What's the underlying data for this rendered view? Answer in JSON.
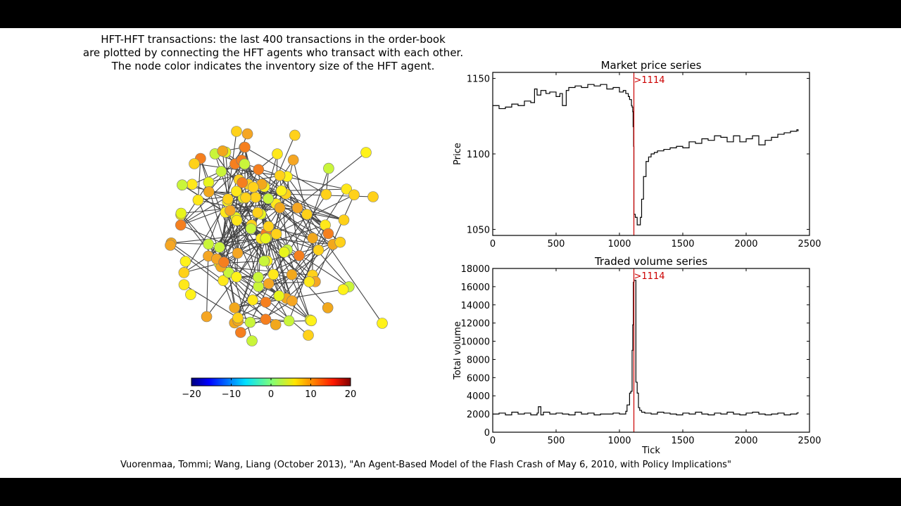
{
  "caption": {
    "line1": "HFT-HFT transactions: the last 400 transactions in the order-book",
    "line2": "are plotted by connecting the HFT agents who transact with each other.",
    "line3": "The node color indicates the inventory size of the HFT agent."
  },
  "citation": "Vuorenmaa, Tommi; Wang, Liang (October 2013), \"An Agent-Based Model of the Flash Crash of May 6, 2010, with Policy Implications\"",
  "colorbar": {
    "min": -20,
    "max": 20,
    "tick_labels": [
      "−20",
      "−10",
      "0",
      "10",
      "20"
    ],
    "colormap": "jet"
  },
  "network": {
    "node_colors": [
      "#f5a623",
      "#ffd11a",
      "#fff21a",
      "#f2a81c",
      "#ffd11a",
      "#e8f51c",
      "#c9f53a",
      "#f57f1f",
      "#ffe81a"
    ]
  },
  "chart_data": [
    {
      "type": "line",
      "title": "Market price series",
      "xlabel": "",
      "ylabel": "Price",
      "xlim": [
        0,
        2500
      ],
      "ylim": [
        1046,
        1154
      ],
      "xticks": [
        0,
        500,
        1000,
        1500,
        2000,
        2500
      ],
      "yticks": [
        1050,
        1100,
        1150
      ],
      "grid": false,
      "annotation": {
        "x": 1114,
        "label": ">1114",
        "color": "#cc0000"
      },
      "series": [
        {
          "x": [
            0,
            50,
            100,
            150,
            200,
            250,
            300,
            330,
            350,
            380,
            420,
            450,
            500,
            530,
            550,
            580,
            600,
            650,
            700,
            750,
            800,
            850,
            900,
            950,
            1000,
            1030,
            1050,
            1070,
            1080,
            1095,
            1100,
            1105,
            1108,
            1112,
            1114,
            1118,
            1125,
            1140,
            1155,
            1165,
            1175,
            1190,
            1210,
            1230,
            1250,
            1275,
            1300,
            1350,
            1400,
            1450,
            1500,
            1550,
            1600,
            1650,
            1700,
            1750,
            1800,
            1850,
            1900,
            1950,
            2000,
            2050,
            2100,
            2150,
            2200,
            2250,
            2300,
            2350,
            2400,
            2410
          ],
          "y": [
            1132,
            1130,
            1131,
            1133,
            1132,
            1135,
            1134,
            1143,
            1139,
            1142,
            1140,
            1141,
            1138,
            1140,
            1132,
            1142,
            1144,
            1145,
            1144,
            1146,
            1145,
            1146,
            1143,
            1144,
            1141,
            1142,
            1140,
            1138,
            1136,
            1132,
            1131,
            1128,
            1118,
            1105,
            1060,
            1060,
            1058,
            1053,
            1053,
            1058,
            1070,
            1085,
            1095,
            1098,
            1100,
            1101,
            1102,
            1103,
            1104,
            1105,
            1104,
            1108,
            1107,
            1110,
            1109,
            1112,
            1111,
            1108,
            1112,
            1108,
            1110,
            1112,
            1106,
            1109,
            1111,
            1113,
            1114,
            1115,
            1116,
            1115
          ]
        }
      ]
    },
    {
      "type": "line",
      "title": "Traded volume series",
      "xlabel": "Tick",
      "ylabel": "Total volume",
      "xlim": [
        0,
        2500
      ],
      "ylim": [
        0,
        18000
      ],
      "xticks": [
        0,
        500,
        1000,
        1500,
        2000,
        2500
      ],
      "yticks": [
        0,
        2000,
        4000,
        6000,
        8000,
        10000,
        12000,
        14000,
        16000,
        18000
      ],
      "grid": false,
      "annotation": {
        "x": 1114,
        "label": ">1114",
        "color": "#cc0000"
      },
      "series": [
        {
          "x": [
            0,
            50,
            100,
            150,
            200,
            250,
            300,
            350,
            360,
            380,
            400,
            450,
            500,
            550,
            600,
            650,
            700,
            750,
            800,
            850,
            900,
            950,
            1000,
            1050,
            1060,
            1080,
            1090,
            1100,
            1105,
            1110,
            1115,
            1130,
            1140,
            1150,
            1160,
            1175,
            1200,
            1250,
            1300,
            1350,
            1400,
            1450,
            1500,
            1550,
            1600,
            1650,
            1700,
            1750,
            1800,
            1850,
            1900,
            1950,
            2000,
            2050,
            2100,
            2150,
            2200,
            2250,
            2300,
            2350,
            2400,
            2410
          ],
          "y": [
            2000,
            2100,
            1900,
            2200,
            2000,
            2100,
            1900,
            2100,
            2800,
            1900,
            2200,
            2000,
            2100,
            2000,
            1900,
            2200,
            2000,
            2100,
            1900,
            2000,
            2000,
            2100,
            2000,
            2300,
            3000,
            4300,
            4500,
            9000,
            11800,
            16500,
            16700,
            5500,
            4300,
            2700,
            2400,
            2200,
            2100,
            2000,
            2200,
            2100,
            2000,
            1900,
            2100,
            2000,
            2200,
            2000,
            1900,
            2100,
            2000,
            2200,
            2000,
            1900,
            2100,
            2200,
            2000,
            1900,
            2000,
            2100,
            1900,
            2000,
            2100,
            2200
          ]
        }
      ]
    }
  ]
}
